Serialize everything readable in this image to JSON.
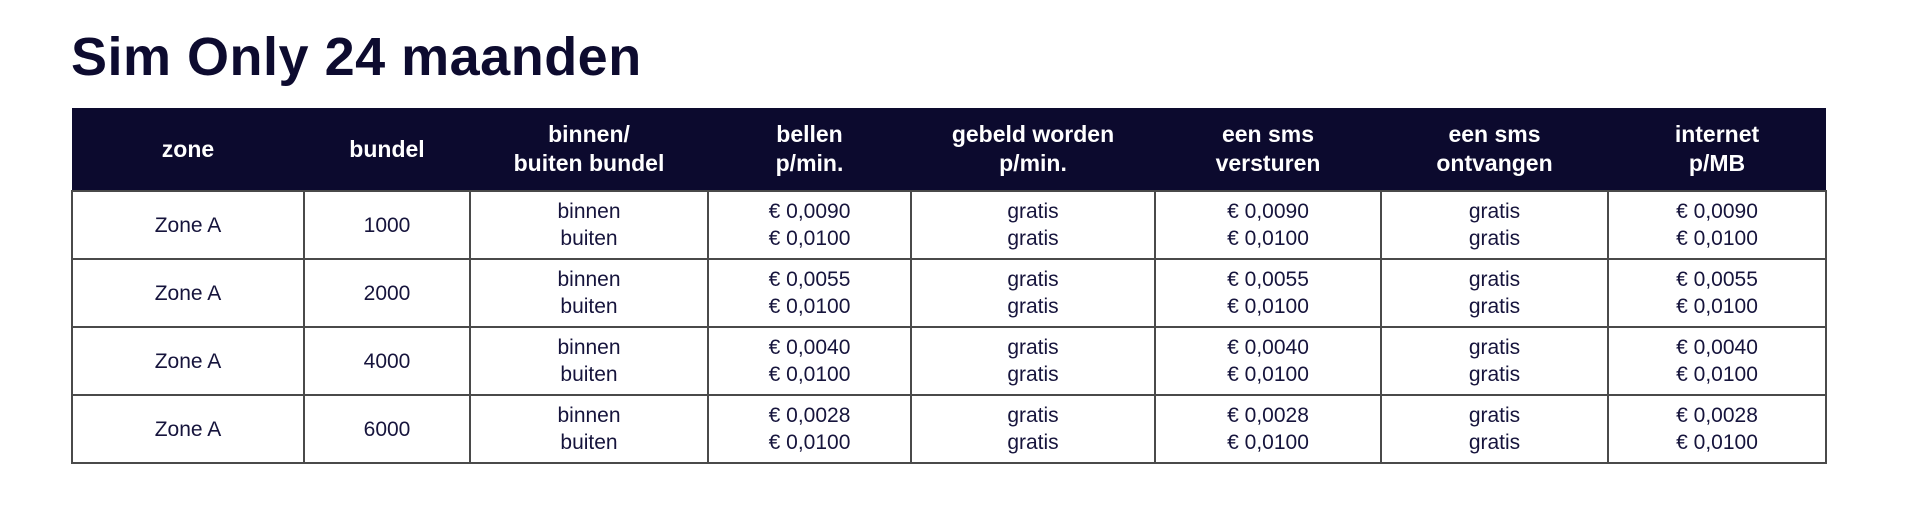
{
  "title": "Sim Only 24 maanden",
  "colors": {
    "header_bg": "#0c0a2e",
    "header_text": "#ffffff",
    "text": "#16143c"
  },
  "table": {
    "headers": [
      [
        "zone"
      ],
      [
        "bundel"
      ],
      [
        "binnen/",
        "buiten bundel"
      ],
      [
        "bellen",
        "p/min."
      ],
      [
        "gebeld worden",
        "p/min."
      ],
      [
        "een sms",
        "versturen"
      ],
      [
        "een sms",
        "ontvangen"
      ],
      [
        "internet",
        "p/MB"
      ]
    ],
    "rows": [
      {
        "zone": "Zone A",
        "bundel": "1000",
        "type": [
          "binnen",
          "buiten"
        ],
        "bellen": [
          "€ 0,0090",
          "€ 0,0100"
        ],
        "gebeld": [
          "gratis",
          "gratis"
        ],
        "sms_out": [
          "€ 0,0090",
          "€ 0,0100"
        ],
        "sms_in": [
          "gratis",
          "gratis"
        ],
        "internet": [
          "€ 0,0090",
          "€ 0,0100"
        ]
      },
      {
        "zone": "Zone A",
        "bundel": "2000",
        "type": [
          "binnen",
          "buiten"
        ],
        "bellen": [
          "€ 0,0055",
          "€ 0,0100"
        ],
        "gebeld": [
          "gratis",
          "gratis"
        ],
        "sms_out": [
          "€ 0,0055",
          "€ 0,0100"
        ],
        "sms_in": [
          "gratis",
          "gratis"
        ],
        "internet": [
          "€ 0,0055",
          "€ 0,0100"
        ]
      },
      {
        "zone": "Zone A",
        "bundel": "4000",
        "type": [
          "binnen",
          "buiten"
        ],
        "bellen": [
          "€ 0,0040",
          "€ 0,0100"
        ],
        "gebeld": [
          "gratis",
          "gratis"
        ],
        "sms_out": [
          "€ 0,0040",
          "€ 0,0100"
        ],
        "sms_in": [
          "gratis",
          "gratis"
        ],
        "internet": [
          "€ 0,0040",
          "€ 0,0100"
        ]
      },
      {
        "zone": "Zone A",
        "bundel": "6000",
        "type": [
          "binnen",
          "buiten"
        ],
        "bellen": [
          "€ 0,0028",
          "€ 0,0100"
        ],
        "gebeld": [
          "gratis",
          "gratis"
        ],
        "sms_out": [
          "€ 0,0028",
          "€ 0,0100"
        ],
        "sms_in": [
          "gratis",
          "gratis"
        ],
        "internet": [
          "€ 0,0028",
          "€ 0,0100"
        ]
      }
    ]
  }
}
